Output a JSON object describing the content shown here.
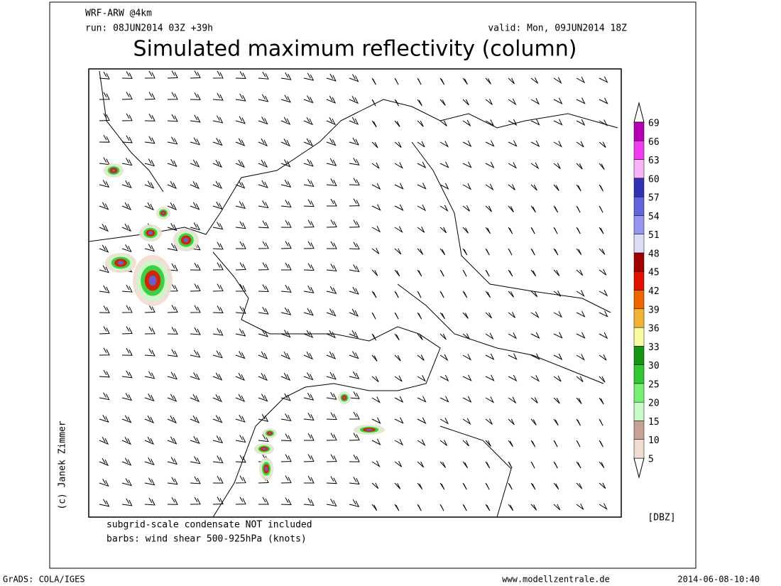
{
  "header": {
    "model": "WRF-ARW @4km",
    "run": "run: 08JUN2014 03Z +39h",
    "valid": "valid: Mon, 09JUN2014 18Z",
    "title": "Simulated maximum reflectivity (column)"
  },
  "colorbar": {
    "unit": "[DBZ]",
    "levels": [
      5,
      10,
      15,
      20,
      25,
      30,
      33,
      36,
      39,
      42,
      45,
      48,
      51,
      54,
      57,
      60,
      63,
      66,
      69
    ],
    "colors": [
      "#f0dcd2",
      "#c8a096",
      "#c8fac8",
      "#78f078",
      "#32c832",
      "#149614",
      "#fafaa0",
      "#f0b432",
      "#f06400",
      "#e01400",
      "#a00000",
      "#dcdcf8",
      "#9696f0",
      "#6464dc",
      "#3232b4",
      "#f8b4f8",
      "#f03cf0",
      "#b400b4"
    ]
  },
  "notes": [
    "subgrid-scale condensate NOT included",
    "barbs: wind shear 500-925hPa (knots)"
  ],
  "credit": "(c) Janek Zimmer",
  "footer": {
    "left": "GrADS: COLA/IGES",
    "center": "www.modellzentrale.de",
    "right": "2014-06-08-10:40"
  }
}
